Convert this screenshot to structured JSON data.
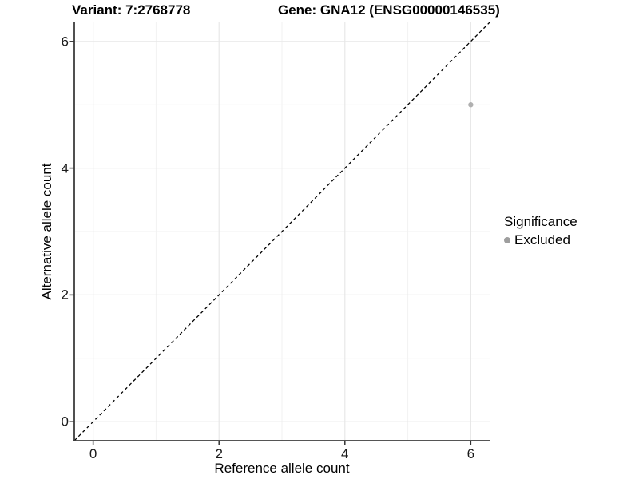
{
  "chart_data": {
    "type": "scatter",
    "title_left": "Variant: 7:2768778",
    "title_right": "Gene: GNA12 (ENSG00000146535)",
    "xlabel": "Reference allele count",
    "ylabel": "Alternative allele count",
    "xlim": [
      -0.3,
      6.3
    ],
    "ylim": [
      -0.3,
      6.3
    ],
    "x_ticks": [
      0,
      2,
      4,
      6
    ],
    "y_ticks": [
      0,
      2,
      4,
      6
    ],
    "x_minor_ticks": [
      1,
      3,
      5
    ],
    "y_minor_ticks": [
      1,
      3,
      5
    ],
    "grid": "on",
    "points": [
      {
        "x": 6,
        "y": 5,
        "series": "Excluded"
      }
    ],
    "identity_line": {
      "slope": 1,
      "intercept": 0,
      "style": "dashed",
      "color": "#000000"
    },
    "legend": {
      "title": "Significance",
      "position": "right",
      "items": [
        {
          "label": "Excluded",
          "color": "#9e9e9e"
        }
      ]
    },
    "colors": {
      "point": "#b0b0b0",
      "grid_major": "#e7e7e7",
      "grid_minor": "#f2f2f2",
      "axis_line": "#3d3d3d",
      "tick_mark": "#333333"
    }
  }
}
